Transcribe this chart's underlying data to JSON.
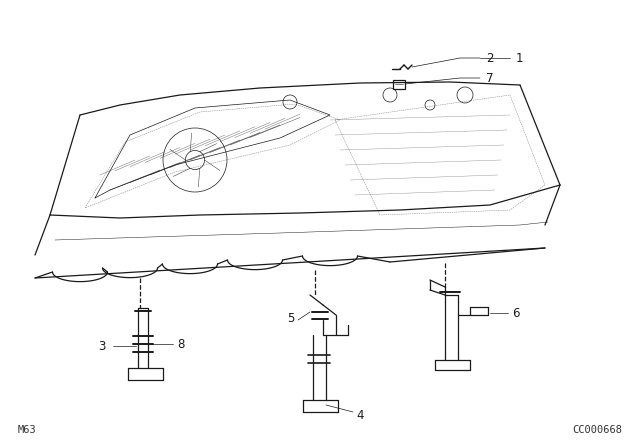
{
  "bg_color": "#ffffff",
  "bottom_left_text": "M63",
  "bottom_right_text": "CC000668",
  "line_color": "#1a1a1a",
  "lw_main": 0.9,
  "lw_thin": 0.5,
  "lw_detail": 0.7
}
